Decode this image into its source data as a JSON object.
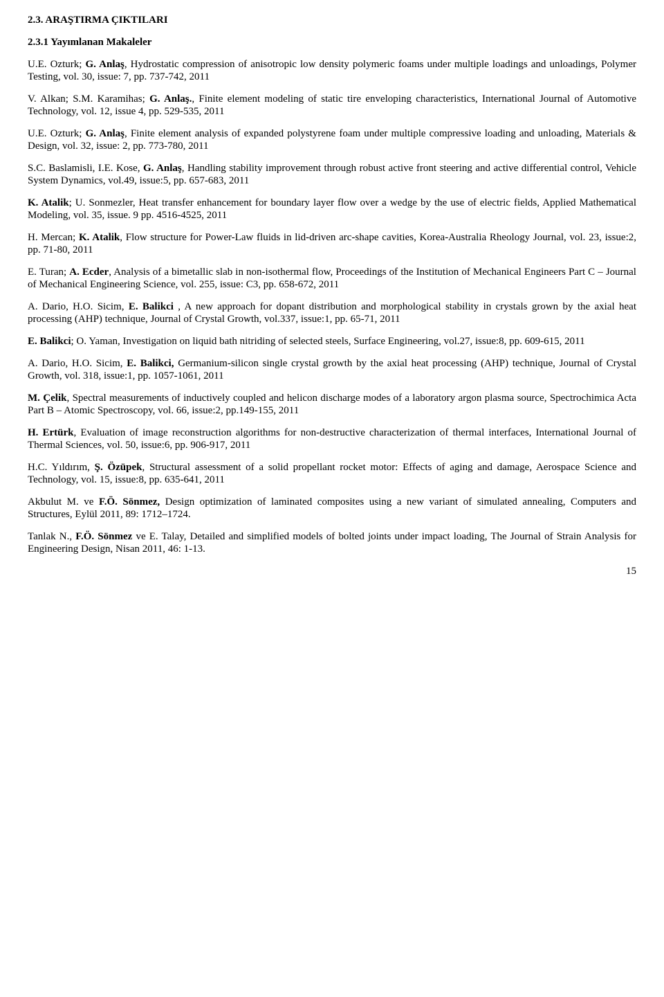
{
  "section_heading": "2.3. ARAŞTIRMA ÇIKTILARI",
  "subsection_heading": "2.3.1 Yayımlanan Makaleler",
  "page_number": "15",
  "refs": [
    {
      "segments": [
        {
          "t": "U.E. Ozturk; "
        },
        {
          "t": "G. Anlaş",
          "b": true
        },
        {
          "t": ", Hydrostatic compression of anisotropic low density polymeric foams under multiple loadings and unloadings, Polymer Testing, vol. 30,  issue: 7, pp. 737-742, 2011"
        }
      ]
    },
    {
      "segments": [
        {
          "t": "V. Alkan; S.M. Karamihas; "
        },
        {
          "t": "G. Anlaş.",
          "b": true
        },
        {
          "t": ", Finite element modeling of static tire enveloping characteristics, International Journal of Automotive Technology, vol. 12,  issue 4, pp. 529-535, 2011"
        }
      ]
    },
    {
      "segments": [
        {
          "t": "U.E. Ozturk; "
        },
        {
          "t": "G. Anlaş",
          "b": true
        },
        {
          "t": ", Finite element analysis of expanded polystyrene foam under multiple compressive loading and unloading, Materials & Design, vol. 32, issue: 2,  pp. 773-780, 2011"
        }
      ]
    },
    {
      "segments": [
        {
          "t": "S.C. Baslamisli, I.E. Kose, "
        },
        {
          "t": "G. Anlaş",
          "b": true
        },
        {
          "t": ", Handling stability improvement through robust active front steering and active differential control, Vehicle System Dynamics, vol.49,   issue:5,  pp. 657-683, 2011"
        }
      ]
    },
    {
      "segments": [
        {
          "t": "K. Atalik",
          "b": true
        },
        {
          "t": "; U. Sonmezler, Heat transfer enhancement for boundary layer flow over a wedge by the use of electric fields, Applied Mathematical Modeling, vol. 35, issue. 9  pp. 4516-4525, 2011"
        }
      ]
    },
    {
      "segments": [
        {
          "t": "H. Mercan; "
        },
        {
          "t": "K. Atalik",
          "b": true
        },
        {
          "t": ", Flow structure for Power-Law fluids in lid-driven arc-shape cavities, Korea-Australia Rheology Journal, vol. 23,  issue:2, pp. 71-80,  2011"
        }
      ]
    },
    {
      "segments": [
        {
          "t": "E. Turan; "
        },
        {
          "t": "A. Ecder",
          "b": true
        },
        {
          "t": ", Analysis of a bimetallic slab in non-isothermal flow, Proceedings of the Institution of Mechanical Engineers Part C – Journal of Mechanical Engineering Science, vol. 255, issue: C3,  pp. 658-672, 2011"
        }
      ]
    },
    {
      "segments": [
        {
          "t": "A. Dario, H.O. Sicim, "
        },
        {
          "t": "E. Balikci",
          "b": true
        },
        {
          "t": " , A new approach for dopant distribution and morphological stability in crystals grown by the axial heat processing (AHP) technique, Journal of Crystal Growth, vol.337, issue:1, pp. 65-71,  2011"
        }
      ]
    },
    {
      "segments": [
        {
          "t": "E. Balikci",
          "b": true
        },
        {
          "t": "; O. Yaman, Investigation on liquid bath nitriding of selected steels, Surface Engineering, vol.27, issue:8, pp. 609-615, 2011"
        }
      ]
    },
    {
      "segments": [
        {
          "t": "A. Dario, H.O. Sicim, "
        },
        {
          "t": "E. Balikci,",
          "b": true
        },
        {
          "t": " Germanium-silicon single crystal growth by the axial heat processing (AHP) technique, Journal of Crystal Growth, vol. 318, issue:1, pp. 1057-1061, 2011"
        }
      ]
    },
    {
      "segments": [
        {
          "t": "M. Çelik",
          "b": true
        },
        {
          "t": ", Spectral measurements of inductively coupled and helicon discharge modes of a laboratory argon plasma source, Spectrochimica Acta Part B – Atomic Spectroscopy, vol. 66, issue:2, pp.149-155, 2011"
        }
      ]
    },
    {
      "segments": [
        {
          "t": "H. Ertürk",
          "b": true
        },
        {
          "t": ", Evaluation of image reconstruction algorithms for non-destructive characterization of thermal interfaces, International Journal of Thermal Sciences, vol. 50, issue:6, pp. 906-917, 2011"
        }
      ]
    },
    {
      "segments": [
        {
          "t": "H.C. Yıldırım, "
        },
        {
          "t": "Ş. Özüpek",
          "b": true
        },
        {
          "t": ", Structural assessment of a solid propellant rocket motor: Effects of aging and damage, Aerospace Science and Technology, vol. 15, issue:8, pp. 635-641, 2011"
        }
      ]
    },
    {
      "segments": [
        {
          "t": "Akbulut M. ve "
        },
        {
          "t": "F.Ö. Sönmez,",
          "b": true
        },
        {
          "t": " Design optimization of laminated composites using a new variant of simulated annealing, Computers and Structures, Eylül 2011, 89: 1712–1724."
        }
      ]
    },
    {
      "segments": [
        {
          "t": "Tanlak N., "
        },
        {
          "t": "F.Ö. Sönmez",
          "b": true
        },
        {
          "t": " ve E. Talay, Detailed and simplified models of bolted joints under impact loading, The Journal of Strain Analysis for Engineering Design, Nisan 2011, 46: 1-13."
        }
      ]
    }
  ]
}
